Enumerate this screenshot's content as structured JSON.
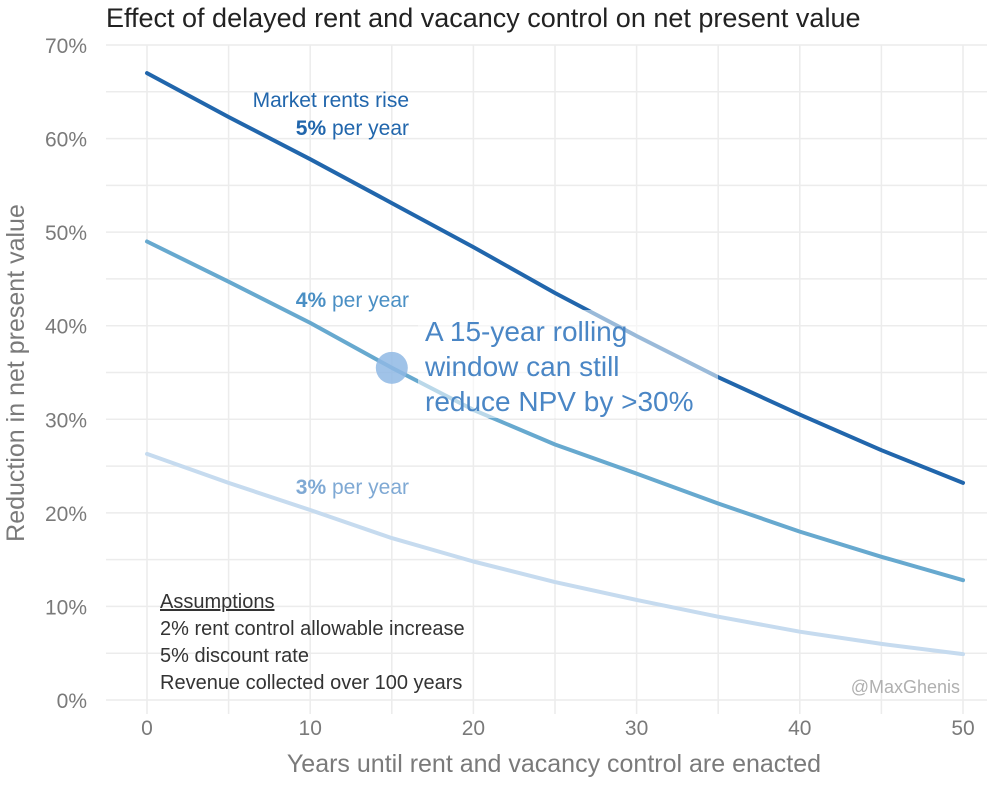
{
  "chart_data": {
    "type": "line",
    "title": "Effect of delayed rent and vacancy control on net present value",
    "xlabel": "Years until rent and vacancy control are enacted",
    "ylabel": "Reduction in net present value",
    "xlim": [
      0,
      50
    ],
    "ylim": [
      0,
      70
    ],
    "x_ticks": [
      0,
      10,
      20,
      30,
      40,
      50
    ],
    "y_ticks": [
      0,
      10,
      20,
      30,
      40,
      50,
      60,
      70
    ],
    "y_tick_labels": [
      "0%",
      "10%",
      "20%",
      "30%",
      "40%",
      "50%",
      "60%",
      "70%"
    ],
    "x": [
      0,
      5,
      10,
      15,
      20,
      25,
      30,
      35,
      40,
      45,
      50
    ],
    "series": [
      {
        "name": "5% per year",
        "pct": "5%",
        "suffix": " per year",
        "color": "#2166ac",
        "values": [
          67.0,
          62.3,
          57.8,
          53.1,
          48.4,
          43.5,
          38.9,
          34.5,
          30.5,
          26.7,
          23.2
        ]
      },
      {
        "name": "4% per year",
        "pct": "4%",
        "suffix": " per year",
        "color": "#67a9cf",
        "values": [
          49.0,
          44.7,
          40.3,
          35.5,
          31.0,
          27.3,
          24.2,
          21.0,
          18.0,
          15.3,
          12.8
        ]
      },
      {
        "name": "3% per year",
        "pct": "3%",
        "suffix": " per year",
        "color": "#c6dbef",
        "values": [
          26.3,
          23.2,
          20.3,
          17.3,
          14.8,
          12.6,
          10.7,
          8.9,
          7.3,
          6.0,
          4.9
        ]
      }
    ],
    "series_header": "Market rents rise",
    "highlight": {
      "x": 15,
      "y": 35.5,
      "color": "#8fb8e4"
    },
    "callout_lines": [
      "A 15-year rolling",
      "window can still",
      "reduce NPV by >30%"
    ],
    "assumptions": {
      "heading": "Assumptions",
      "lines": [
        "2% rent control allowable increase",
        "5% discount rate",
        "Revenue collected over 100 years"
      ]
    },
    "credit": "@MaxGhenis"
  }
}
